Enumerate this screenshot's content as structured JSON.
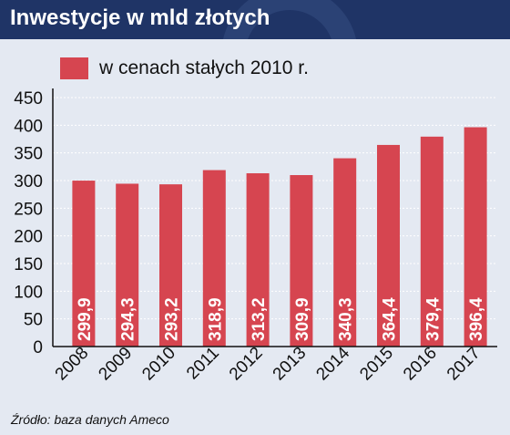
{
  "header": {
    "title": "Inwestycje w mld złotych"
  },
  "legend": {
    "label": "w cenach stałych 2010 r."
  },
  "source": "Źródło: baza danych Ameco",
  "colors": {
    "header_bg": "#1f3466",
    "panel_bg": "#e4e9f2",
    "bar": "#d64550",
    "value_text": "#ffffff"
  },
  "chart_data": {
    "type": "bar",
    "title": "Inwestycje w mld złotych",
    "xlabel": "",
    "ylabel": "",
    "categories": [
      "2008",
      "2009",
      "2010",
      "2011",
      "2012",
      "2013",
      "2014",
      "2015",
      "2016",
      "2017"
    ],
    "series": [
      {
        "name": "w cenach stałych 2010 r.",
        "values": [
          299.9,
          294.3,
          293.2,
          318.9,
          313.2,
          309.9,
          340.3,
          364.4,
          379.4,
          396.4
        ]
      }
    ],
    "data_labels": [
      "299,9",
      "294,3",
      "293,2",
      "318,9",
      "313,2",
      "309,9",
      "340,3",
      "364,4",
      "379,4",
      "396,4"
    ],
    "ylim": [
      0,
      450
    ],
    "yticks": [
      "0",
      "50",
      "100",
      "150",
      "200",
      "250",
      "300",
      "350",
      "400",
      "450"
    ],
    "ytick_values": [
      0,
      50,
      100,
      150,
      200,
      250,
      300,
      350,
      400,
      450
    ],
    "grid": true,
    "legend_position": "top-left"
  }
}
